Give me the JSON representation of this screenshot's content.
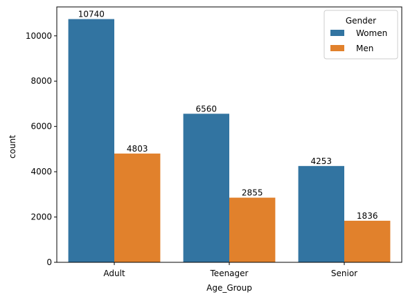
{
  "chart_data": {
    "type": "bar",
    "xlabel": "Age_Group",
    "ylabel": "count",
    "categories": [
      "Adult",
      "Teenager",
      "Senior"
    ],
    "ylim": [
      0,
      11277
    ],
    "yticks": [
      0,
      2000,
      4000,
      6000,
      8000,
      10000
    ],
    "grid": false,
    "legend": {
      "title": "Gender",
      "placement": "top-right"
    },
    "series": [
      {
        "name": "Women",
        "color": "#3274a1",
        "values": [
          10740,
          6560,
          4253
        ]
      },
      {
        "name": "Men",
        "color": "#e1812c",
        "values": [
          4803,
          2855,
          1836
        ]
      }
    ]
  }
}
